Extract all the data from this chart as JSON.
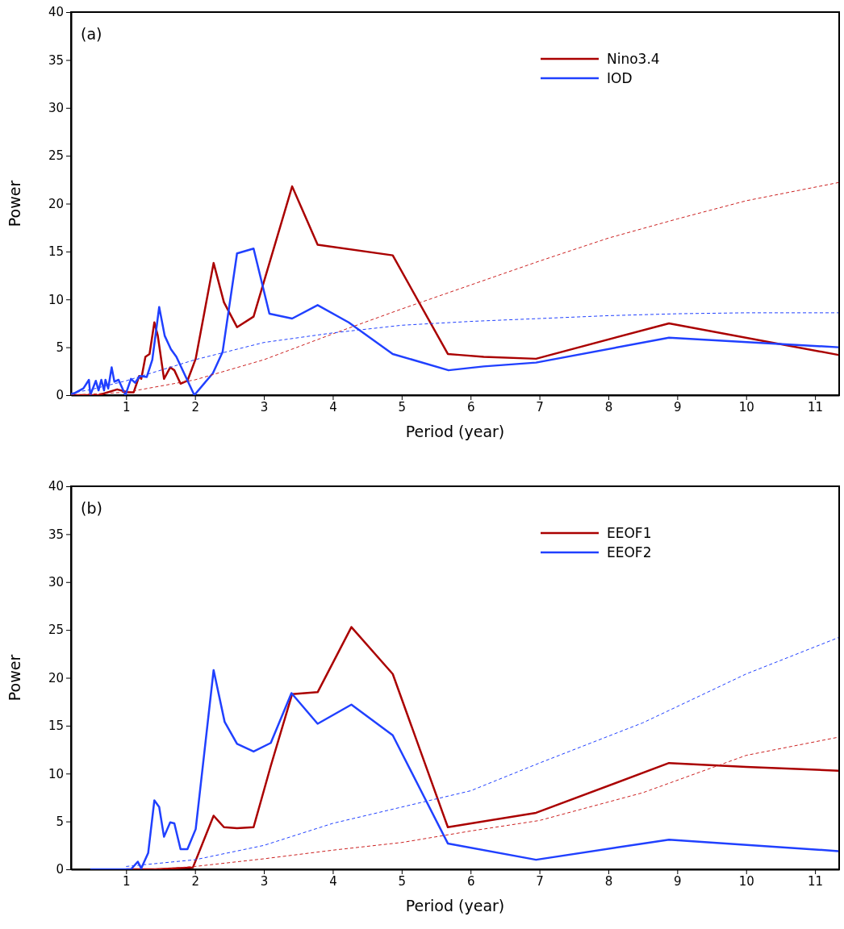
{
  "chart_data": [
    {
      "type": "line",
      "xlabel": "Period (year)",
      "ylabel": "Power",
      "annotations": [
        "(a)"
      ],
      "xlim": [
        0.2,
        11.35
      ],
      "ylim": [
        0,
        40
      ],
      "xticks": [
        1,
        2,
        3,
        4,
        5,
        6,
        7,
        8,
        9,
        10,
        11
      ],
      "yticks": [
        0,
        5,
        10,
        15,
        20,
        25,
        30,
        35,
        40
      ],
      "legend": "top right",
      "series": [
        {
          "name": "Nino3.4",
          "color": "#aa0000",
          "x": [
            0.2,
            0.6,
            0.87,
            1.03,
            1.11,
            1.19,
            1.22,
            1.28,
            1.34,
            1.41,
            1.46,
            1.55,
            1.64,
            1.7,
            1.79,
            1.89,
            2.01,
            2.27,
            2.42,
            2.61,
            2.85,
            3.41,
            3.78,
            4.87,
            5.67,
            5.84,
            6.19,
            6.95,
            8.88,
            11.34
          ],
          "values": [
            0,
            0,
            0.6,
            0.3,
            0.3,
            2.0,
            1.7,
            4.0,
            4.3,
            7.6,
            6.2,
            1.7,
            2.9,
            2.6,
            1.2,
            1.5,
            3.8,
            13.8,
            9.7,
            7.1,
            8.2,
            21.8,
            15.7,
            14.6,
            4.3,
            4.2,
            4.0,
            3.8,
            7.5,
            4.2
          ]
        },
        {
          "name": "IOD",
          "color": "#2040ff",
          "x": [
            0.2,
            0.38,
            0.46,
            0.48,
            0.56,
            0.6,
            0.64,
            0.68,
            0.7,
            0.74,
            0.79,
            0.83,
            0.89,
            0.99,
            1.07,
            1.13,
            1.2,
            1.3,
            1.38,
            1.48,
            1.56,
            1.65,
            1.73,
            1.99,
            2.26,
            2.4,
            2.61,
            2.85,
            3.08,
            3.41,
            3.78,
            4.23,
            4.87,
            5.68,
            6.19,
            6.95,
            8.88,
            11.34
          ],
          "values": [
            0,
            0.7,
            1.6,
            0,
            1.5,
            0.5,
            1.6,
            0.5,
            1.6,
            0.7,
            2.9,
            1.4,
            1.6,
            0,
            1.7,
            1.3,
            2.0,
            1.9,
            3.7,
            9.2,
            6.2,
            4.8,
            4.0,
            0,
            2.3,
            4.5,
            14.8,
            15.3,
            8.5,
            8.0,
            9.4,
            7.6,
            4.3,
            2.6,
            3.0,
            3.4,
            6.0,
            5.0
          ]
        },
        {
          "color": "#cc2020",
          "line_style": "dashed",
          "x": [
            0.2,
            1,
            2,
            3,
            4,
            5,
            6,
            7,
            8,
            9,
            10,
            11.34
          ],
          "values": [
            0,
            0.3,
            1.6,
            3.7,
            6.4,
            9.0,
            11.5,
            14.0,
            16.4,
            18.4,
            20.3,
            22.2
          ]
        },
        {
          "color": "#2040ff",
          "line_style": "dashed",
          "x": [
            0.2,
            0.5,
            1,
            2,
            3,
            4,
            5,
            6,
            7,
            8,
            9,
            10,
            11.34
          ],
          "values": [
            0.2,
            0.6,
            1.5,
            3.7,
            5.5,
            6.5,
            7.3,
            7.7,
            8.0,
            8.3,
            8.5,
            8.6,
            8.6
          ]
        }
      ]
    },
    {
      "type": "line",
      "xlabel": "Period (year)",
      "ylabel": "Power",
      "annotations": [
        "(b)"
      ],
      "xlim": [
        0.2,
        11.35
      ],
      "ylim": [
        0,
        40
      ],
      "xticks": [
        1,
        2,
        3,
        4,
        5,
        6,
        7,
        8,
        9,
        10,
        11
      ],
      "yticks": [
        0,
        5,
        10,
        15,
        20,
        25,
        30,
        35,
        40
      ],
      "legend": "top right",
      "series": [
        {
          "name": "EEOF1",
          "color": "#aa0000",
          "x": [
            1.0,
            1.42,
            1.97,
            2.27,
            2.42,
            2.61,
            2.85,
            3.1,
            3.41,
            3.78,
            4.27,
            4.87,
            5.67,
            6.95,
            8.88,
            10.0,
            11.34
          ],
          "values": [
            0,
            0,
            0.2,
            5.6,
            4.4,
            4.3,
            4.4,
            10.8,
            18.3,
            18.5,
            25.3,
            20.4,
            4.4,
            5.9,
            11.1,
            10.7,
            10.3
          ]
        },
        {
          "name": "EEOF2",
          "color": "#2040ff",
          "x": [
            0.48,
            1.07,
            1.17,
            1.22,
            1.32,
            1.41,
            1.48,
            1.55,
            1.64,
            1.7,
            1.79,
            1.89,
            2.01,
            2.27,
            2.43,
            2.61,
            2.85,
            3.1,
            3.4,
            3.78,
            4.27,
            4.87,
            5.67,
            6.95,
            8.88,
            11.34
          ],
          "values": [
            0,
            0,
            0.8,
            0.1,
            1.7,
            7.2,
            6.5,
            3.4,
            4.9,
            4.8,
            2.1,
            2.1,
            4.2,
            20.8,
            15.4,
            13.1,
            12.3,
            13.2,
            18.4,
            15.2,
            17.2,
            14.0,
            2.7,
            1.0,
            3.1,
            1.9
          ]
        },
        {
          "color": "#2040ff",
          "line_style": "dashed",
          "x": [
            1,
            2,
            3,
            4,
            5,
            6,
            7,
            8.5,
            10,
            11.34
          ],
          "values": [
            0.3,
            1.0,
            2.5,
            4.8,
            6.5,
            8.2,
            11.1,
            15.3,
            20.4,
            24.2
          ]
        },
        {
          "color": "#cc2020",
          "line_style": "dashed",
          "x": [
            1.4,
            2,
            3,
            4,
            5,
            6,
            7,
            8.5,
            10,
            11.34
          ],
          "values": [
            0,
            0.3,
            1.1,
            2.0,
            2.8,
            4.0,
            5.1,
            8.0,
            11.9,
            13.8
          ]
        }
      ]
    }
  ]
}
